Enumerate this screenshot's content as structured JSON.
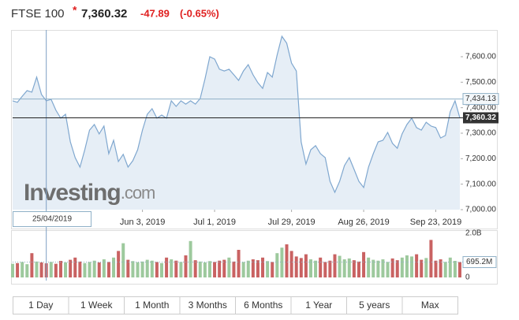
{
  "header": {
    "name": "FTSE 100",
    "marker": "*",
    "price": "7,360.32",
    "change": "-47.89",
    "change_pct": "(-0.65%)"
  },
  "watermark": {
    "brand": "Investing",
    "suffix": ".com"
  },
  "chart_data": {
    "type": "line",
    "values": [
      7427,
      7421,
      7445,
      7467,
      7461,
      7520,
      7452,
      7427,
      7433,
      7390,
      7359,
      7374,
      7266,
      7204,
      7167,
      7235,
      7312,
      7334,
      7297,
      7328,
      7220,
      7272,
      7189,
      7217,
      7167,
      7192,
      7235,
      7312,
      7374,
      7396,
      7359,
      7371,
      7359,
      7427,
      7405,
      7427,
      7414,
      7427,
      7414,
      7436,
      7513,
      7600,
      7591,
      7551,
      7544,
      7551,
      7529,
      7507,
      7544,
      7569,
      7529,
      7498,
      7476,
      7538,
      7520,
      7606,
      7680,
      7653,
      7575,
      7544,
      7266,
      7179,
      7235,
      7251,
      7220,
      7204,
      7111,
      7068,
      7111,
      7173,
      7204,
      7158,
      7111,
      7087,
      7167,
      7220,
      7266,
      7272,
      7303,
      7260,
      7241,
      7297,
      7334,
      7359,
      7322,
      7312,
      7343,
      7328,
      7322,
      7281,
      7291,
      7384,
      7427,
      7360.32
    ],
    "volumes": [
      620,
      650,
      700,
      600,
      1100,
      720,
      680,
      640,
      700,
      620,
      750,
      680,
      800,
      900,
      720,
      650,
      700,
      760,
      680,
      820,
      700,
      900,
      1200,
      1550,
      800,
      740,
      690,
      720,
      800,
      760,
      700,
      650,
      900,
      820,
      760,
      700,
      1000,
      1650,
      780,
      720,
      680,
      740,
      700,
      760,
      800,
      900,
      720,
      1250,
      700,
      760,
      820,
      780,
      900,
      740,
      700,
      1100,
      1350,
      1500,
      1200,
      950,
      880,
      1050,
      820,
      760,
      900,
      700,
      760,
      1050,
      980,
      820,
      860,
      780,
      720,
      1150,
      900,
      800,
      760,
      820,
      700,
      860,
      780,
      900,
      1000,
      950,
      1050,
      800,
      880,
      1700,
      760,
      820,
      700,
      900,
      750,
      695.2
    ],
    "color": "#7fa7cf",
    "area_color": "#e6eef6",
    "up_color": "#9dc99d",
    "down_color": "#c96262",
    "xlim": [
      0,
      93
    ],
    "xticks": [
      {
        "value": 27,
        "label": "Jun 3, 2019"
      },
      {
        "value": 42,
        "label": "Jul 1, 2019"
      },
      {
        "value": 58,
        "label": "Jul 29, 2019"
      },
      {
        "value": 73,
        "label": "Aug 26, 2019"
      },
      {
        "value": 88,
        "label": "Sep 23, 2019"
      }
    ],
    "ylim": [
      7000,
      7705
    ],
    "yticks": [
      {
        "value": 7000,
        "label": "7,000.00"
      },
      {
        "value": 7100,
        "label": "7,100.00"
      },
      {
        "value": 7200,
        "label": "7,200.00"
      },
      {
        "value": 7300,
        "label": "7,300.00"
      },
      {
        "value": 7400,
        "label": "7,400.00"
      },
      {
        "value": 7500,
        "label": "7,500.00"
      },
      {
        "value": 7600,
        "label": "7,600.00"
      }
    ],
    "vlim": [
      0,
      2000
    ],
    "vticks": [
      {
        "value": 0,
        "label": "0"
      },
      {
        "value": 2000,
        "label": "2.0B"
      }
    ],
    "last_volume": {
      "value": 695.2,
      "label": "695.2M"
    },
    "last_price": {
      "value": 7360.32,
      "label": "7,360.32"
    },
    "crosshair": {
      "x": 7,
      "date": "25/04/2019",
      "value": 7434.13,
      "label": "7,434.13"
    },
    "grid": false
  },
  "ranges": [
    "1 Day",
    "1 Week",
    "1 Month",
    "3 Months",
    "6 Months",
    "1 Year",
    "5 years",
    "Max"
  ]
}
